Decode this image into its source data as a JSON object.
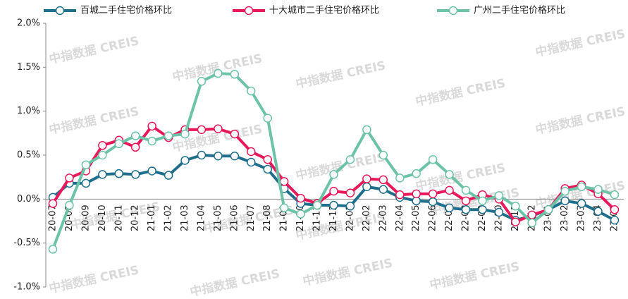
{
  "chart_data": {
    "type": "line",
    "watermark": "中指数据 CREIS",
    "categories": [
      "20-07",
      "20-08",
      "20-09",
      "20-10",
      "20-11",
      "20-12",
      "21-01",
      "21-02",
      "21-03",
      "21-04",
      "21-05",
      "21-06",
      "21-07",
      "21-08",
      "21-09",
      "21-10",
      "21-11",
      "21-12",
      "22-01",
      "22-02",
      "22-03",
      "22-04",
      "22-05",
      "22-06",
      "22-07",
      "22-08",
      "22-09",
      "22-10",
      "22-11",
      "22-12",
      "23-01",
      "23-02",
      "23-03",
      "23-04",
      "23-05"
    ],
    "series": [
      {
        "name": "百城二手住宅价格环比",
        "color": "#1f6e8c",
        "values": [
          0.02,
          0.18,
          0.18,
          0.28,
          0.29,
          0.28,
          0.32,
          0.27,
          0.44,
          0.5,
          0.49,
          0.49,
          0.42,
          0.34,
          0.12,
          -0.05,
          -0.07,
          -0.07,
          -0.08,
          0.14,
          0.11,
          0.02,
          -0.02,
          -0.03,
          -0.1,
          -0.12,
          -0.12,
          -0.15,
          -0.24,
          -0.19,
          -0.12,
          -0.02,
          -0.05,
          -0.14,
          -0.24
        ]
      },
      {
        "name": "十大城市二手住宅价格环比",
        "color": "#e8195a",
        "values": [
          -0.05,
          0.24,
          0.32,
          0.61,
          0.67,
          0.59,
          0.83,
          0.7,
          0.79,
          0.79,
          0.8,
          0.74,
          0.54,
          0.45,
          0.2,
          0.01,
          -0.05,
          0.09,
          0.07,
          0.23,
          0.22,
          0.05,
          0.06,
          0.06,
          0.1,
          -0.02,
          0.05,
          0.0,
          -0.26,
          -0.18,
          -0.12,
          0.12,
          0.16,
          0.06,
          -0.12
        ]
      },
      {
        "name": "广州二手住宅价格环比",
        "color": "#6cc3a8",
        "values": [
          -0.57,
          -0.07,
          0.39,
          0.5,
          0.63,
          0.72,
          0.66,
          0.72,
          0.74,
          1.34,
          1.43,
          1.42,
          1.23,
          0.92,
          -0.1,
          -0.17,
          -0.07,
          0.28,
          0.45,
          0.79,
          0.5,
          0.24,
          0.29,
          0.45,
          0.28,
          0.1,
          -0.02,
          0.04,
          -0.08,
          -0.27,
          -0.12,
          0.09,
          0.14,
          0.11,
          0.05
        ]
      }
    ],
    "ylim": [
      -1.0,
      2.0
    ],
    "yticks": [
      {
        "value": -1.0,
        "label": "-1.0%"
      },
      {
        "value": -0.5,
        "label": "-0.5%"
      },
      {
        "value": 0,
        "label": "0.0%"
      },
      {
        "value": 0.5,
        "label": "0.5%"
      },
      {
        "value": 1.0,
        "label": "1.0%"
      },
      {
        "value": 1.5,
        "label": "1.5%"
      },
      {
        "value": 2.0,
        "label": "2.0%"
      }
    ]
  }
}
